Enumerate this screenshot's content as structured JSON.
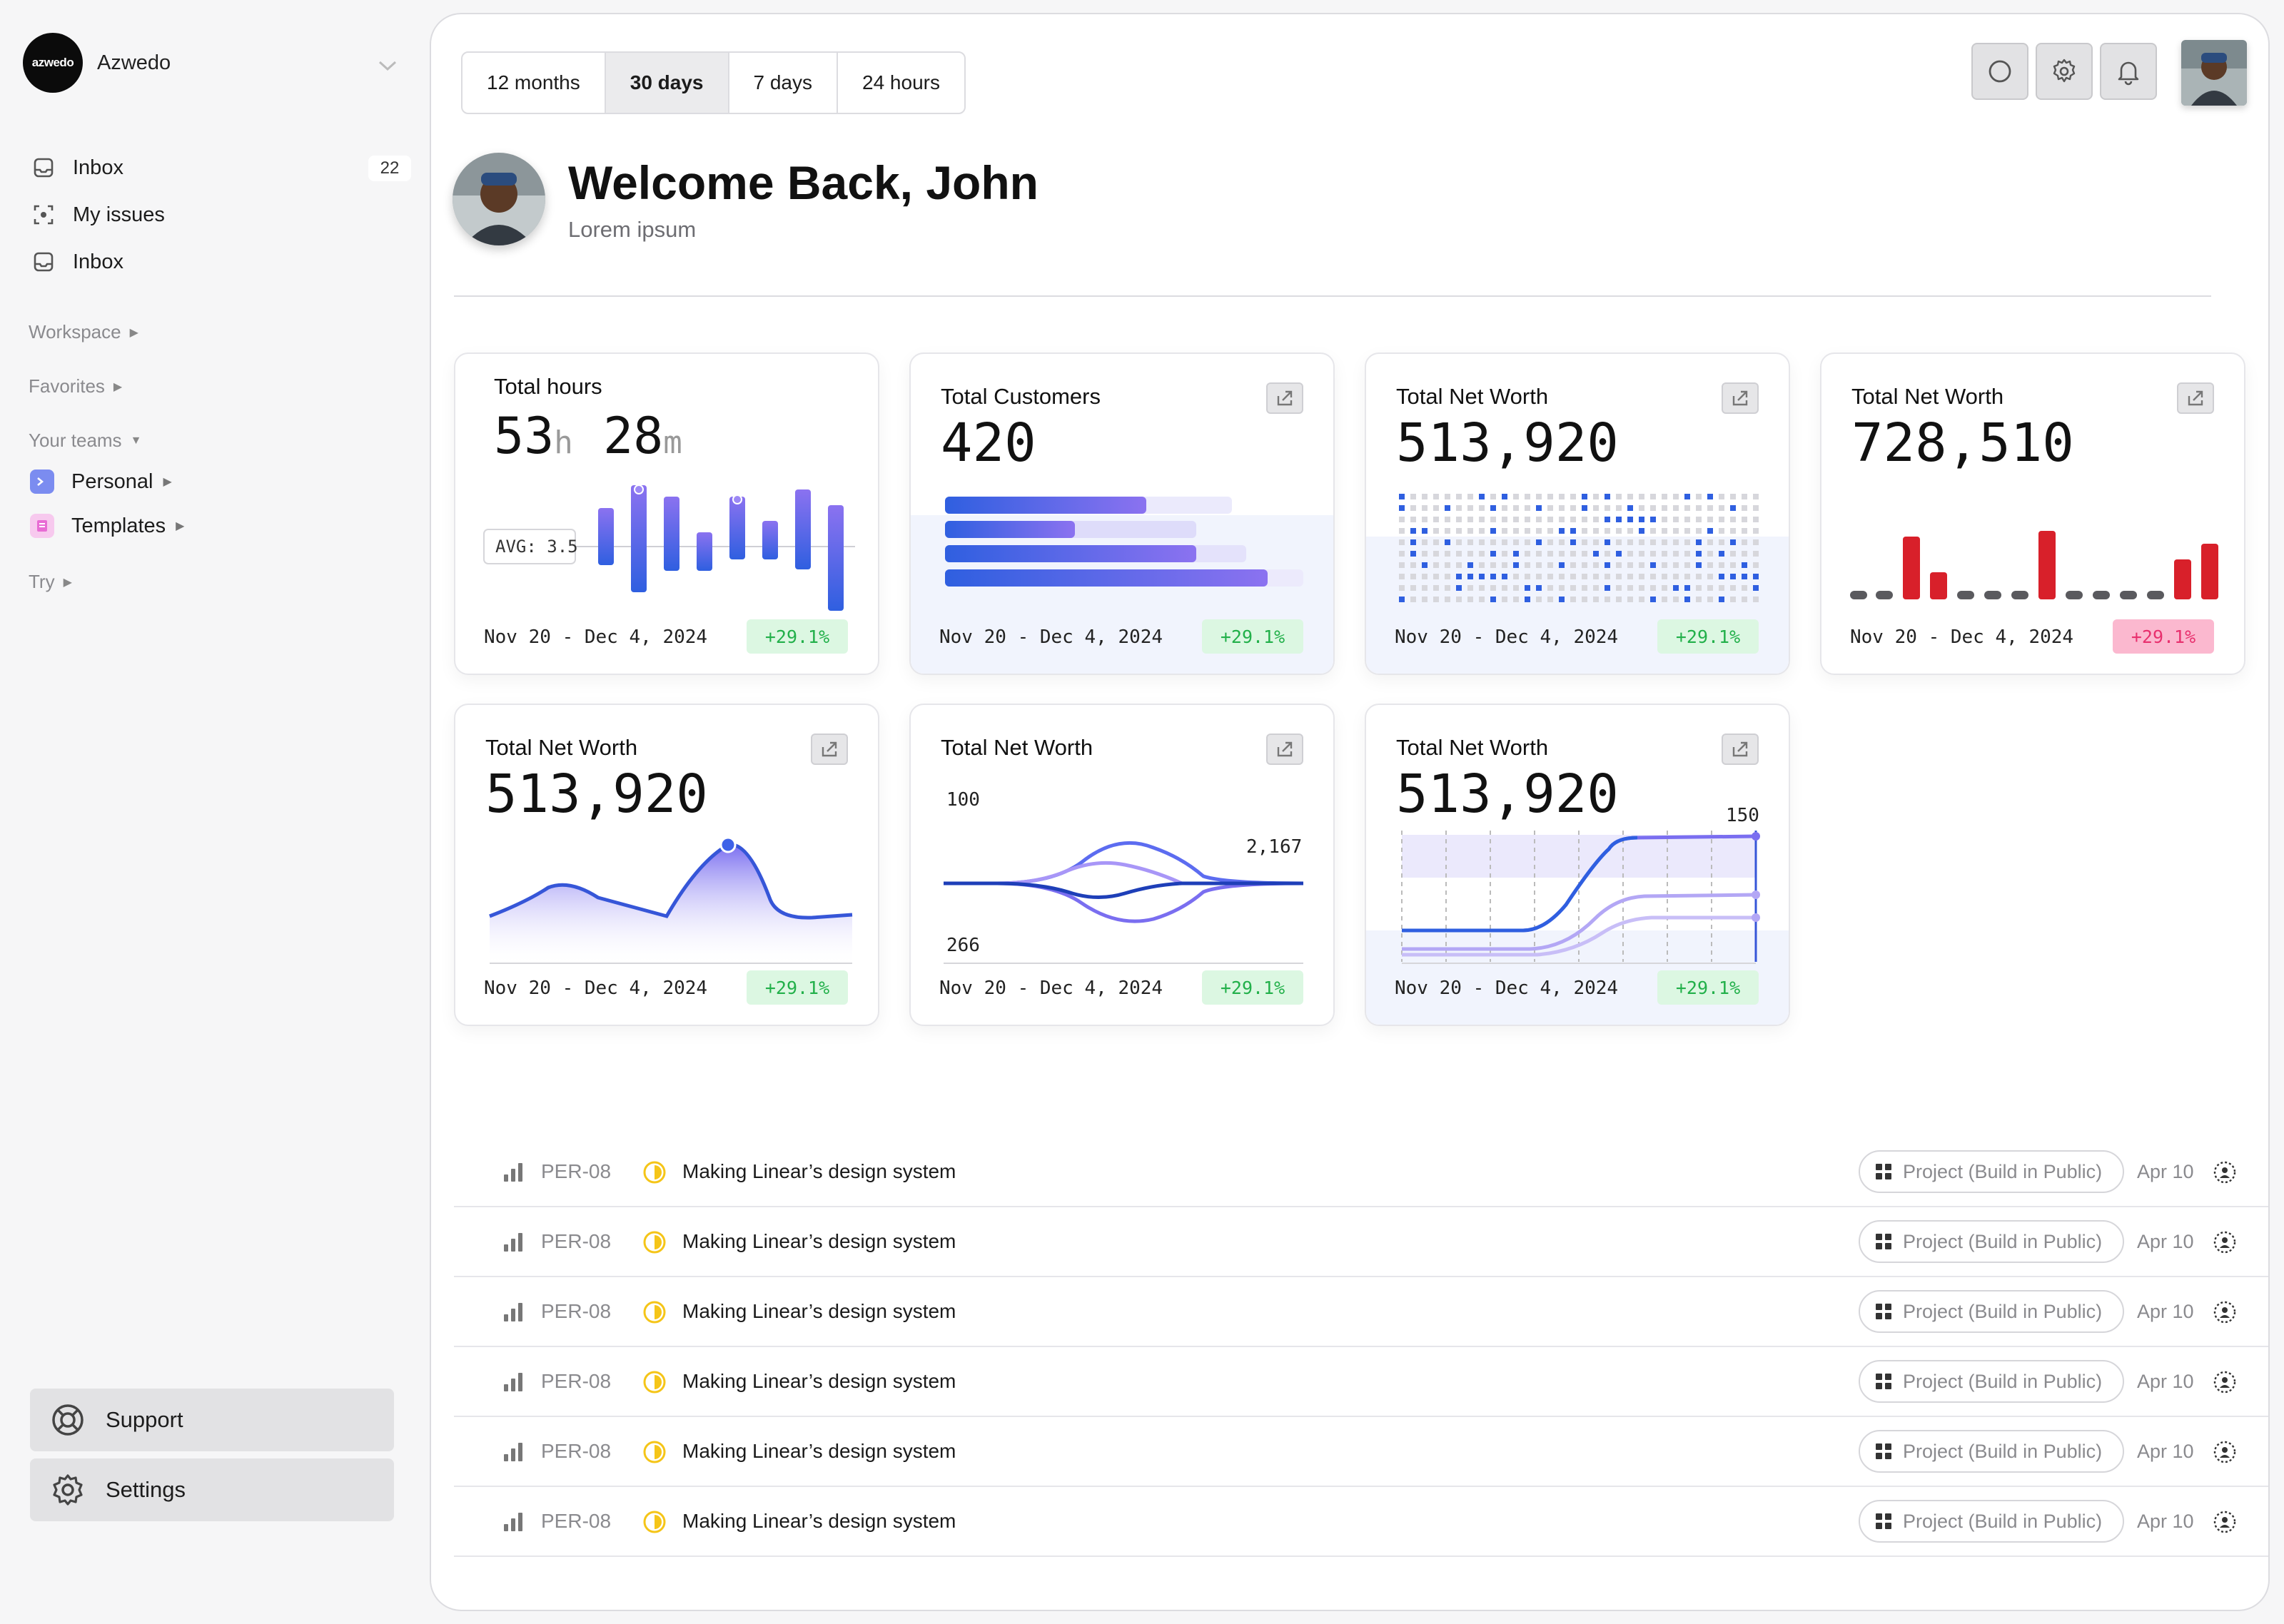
{
  "sidebar": {
    "brand": {
      "logo_text": "azwedo",
      "name": "Azwedo"
    },
    "nav": [
      {
        "label": "Inbox",
        "icon": "inbox-icon",
        "badge": "22"
      },
      {
        "label": "My issues",
        "icon": "target-icon"
      },
      {
        "label": "Inbox",
        "icon": "inbox-icon"
      }
    ],
    "sections": {
      "workspace": "Workspace",
      "favorites": "Favorites",
      "your_teams": "Your teams",
      "try": "Try"
    },
    "teams": [
      {
        "label": "Personal",
        "icon": "terminal-icon",
        "color": "#7b8cf0"
      },
      {
        "label": "Templates",
        "icon": "book-icon",
        "color": "#e86cd4"
      }
    ],
    "support_label": "Support",
    "settings_label": "Settings"
  },
  "header": {
    "time_tabs": [
      "12 months",
      "30 days",
      "7 days",
      "24 hours"
    ],
    "active_tab": "30 days",
    "welcome_title": "Welcome Back, John",
    "welcome_subtitle": "Lorem ipsum",
    "icons": [
      "search-icon",
      "gear-icon",
      "bell-icon"
    ]
  },
  "cards": [
    {
      "title": "Total hours",
      "value_h": "53",
      "unit_h": "h",
      "value_m": "28",
      "unit_m": "m",
      "avg_label": "AVG: 3.5",
      "date": "Nov 20 - Dec 4, 2024",
      "badge": "+29.1%",
      "badge_color": "green"
    },
    {
      "title": "Total Customers",
      "value": "420",
      "date": "Nov 20 - Dec 4, 2024",
      "badge": "+29.1%",
      "badge_color": "green"
    },
    {
      "title": "Total Net Worth",
      "value": "513,920",
      "date": "Nov 20 - Dec 4, 2024",
      "badge": "+29.1%",
      "badge_color": "green"
    },
    {
      "title": "Total Net Worth",
      "value": "728,510",
      "date": "Nov 20 - Dec 4, 2024",
      "badge": "+29.1%",
      "badge_color": "pink"
    },
    {
      "title": "Total Net Worth",
      "value": "513,920",
      "date": "Nov 20 - Dec 4, 2024",
      "badge": "+29.1%",
      "badge_color": "green"
    },
    {
      "title": "Total Net Worth",
      "label_top": "100",
      "label_right": "2,167",
      "label_bottom": "266",
      "date": "Nov 20 - Dec 4, 2024",
      "badge": "+29.1%",
      "badge_color": "green"
    },
    {
      "title": "Total Net Worth",
      "value": "513,920",
      "label_right": "150",
      "date": "Nov 20 - Dec 4, 2024",
      "badge": "+29.1%",
      "badge_color": "green"
    }
  ],
  "issues": [
    {
      "id": "PER-08",
      "title": "Making Linear’s design system",
      "project": "Project (Build in Public)",
      "date": "Apr 10"
    },
    {
      "id": "PER-08",
      "title": "Making Linear’s design system",
      "project": "Project (Build in Public)",
      "date": "Apr 10"
    },
    {
      "id": "PER-08",
      "title": "Making Linear’s design system",
      "project": "Project (Build in Public)",
      "date": "Apr 10"
    },
    {
      "id": "PER-08",
      "title": "Making Linear’s design system",
      "project": "Project (Build in Public)",
      "date": "Apr 10"
    },
    {
      "id": "PER-08",
      "title": "Making Linear’s design system",
      "project": "Project (Build in Public)",
      "date": "Apr 10"
    },
    {
      "id": "PER-08",
      "title": "Making Linear’s design system",
      "project": "Project (Build in Public)",
      "date": "Apr 10"
    }
  ],
  "colors": {
    "accent_blue": "#2f5fe0",
    "accent_purple": "#8b72f0",
    "danger_red": "#d8202a",
    "status_yellow": "#f5c518"
  }
}
